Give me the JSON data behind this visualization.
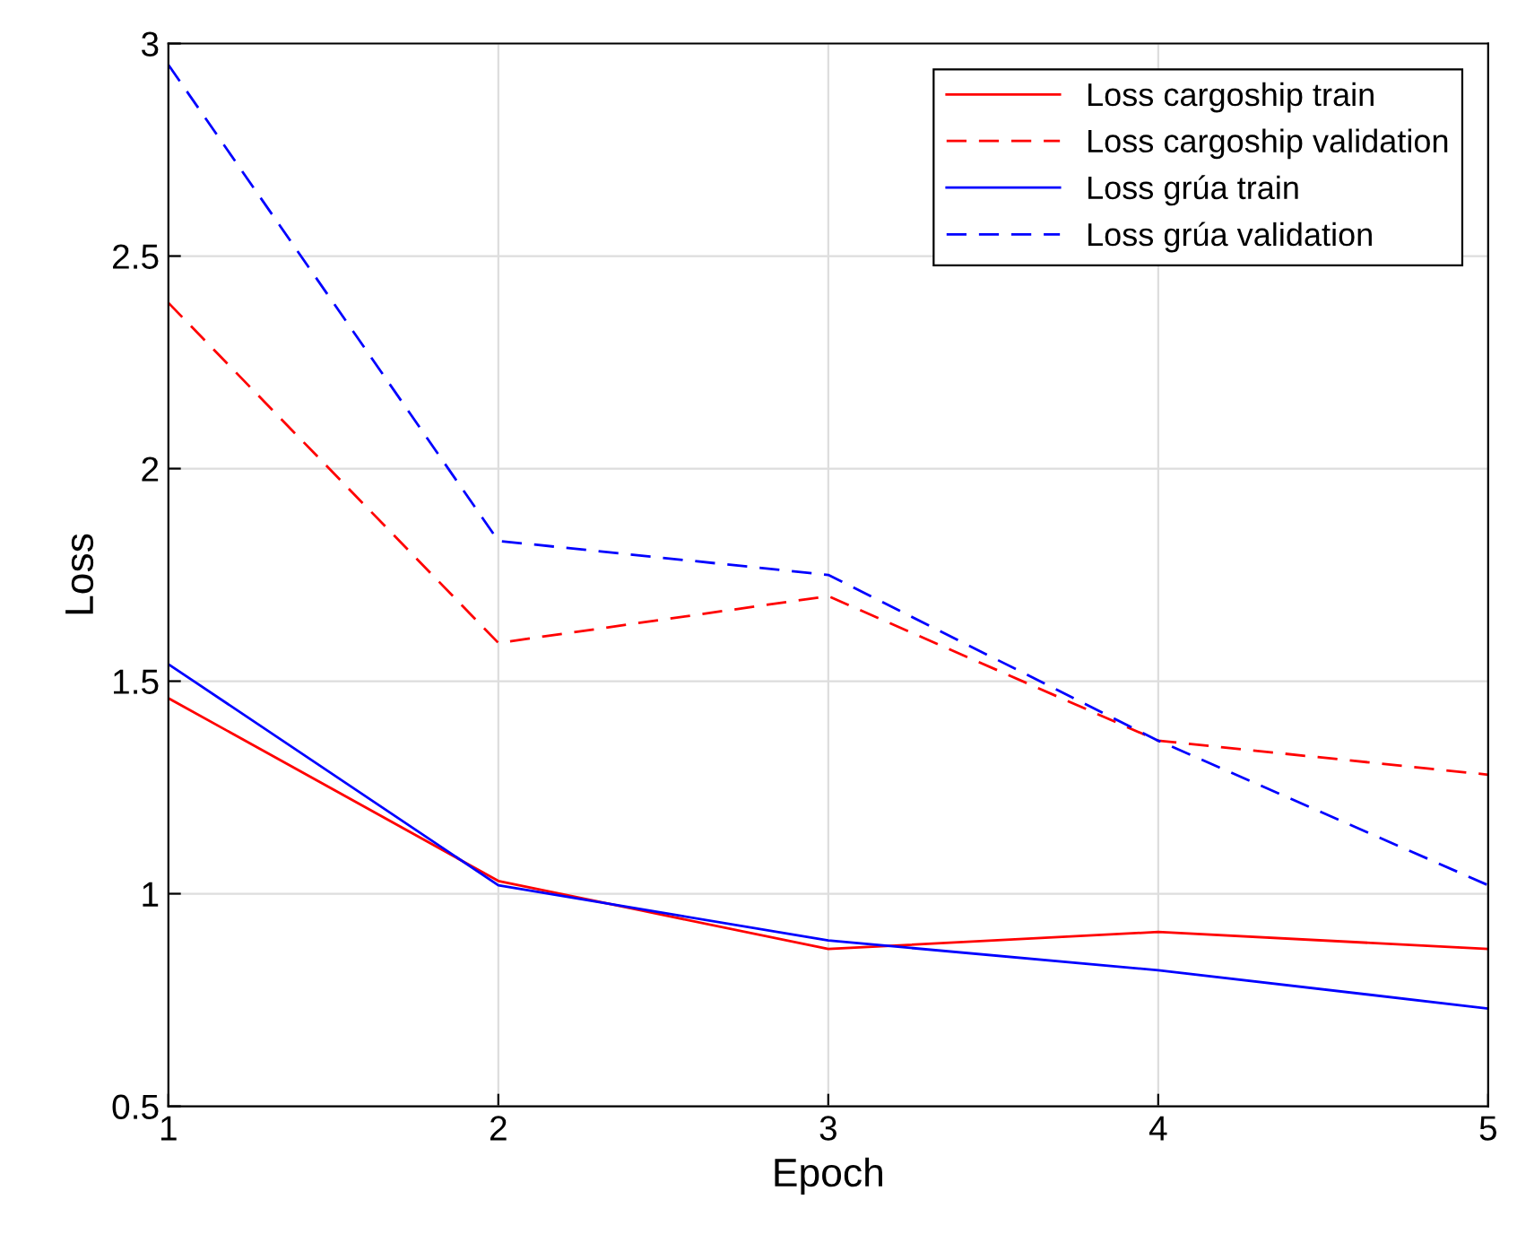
{
  "chart_data": {
    "type": "line",
    "xlabel": "Epoch",
    "ylabel": "Loss",
    "x": [
      1,
      2,
      3,
      4,
      5
    ],
    "series": [
      {
        "name": "Loss cargoship train",
        "color": "#ff0000",
        "line_style": "solid",
        "values": [
          1.46,
          1.03,
          0.87,
          0.91,
          0.87
        ]
      },
      {
        "name": "Loss cargoship validation",
        "color": "#ff0000",
        "line_style": "dashed",
        "values": [
          2.39,
          1.59,
          1.7,
          1.36,
          1.28
        ]
      },
      {
        "name": "Loss grúa train",
        "color": "#0000ff",
        "line_style": "solid",
        "values": [
          1.54,
          1.02,
          0.89,
          0.82,
          0.73
        ]
      },
      {
        "name": "Loss grúa validation",
        "color": "#0000ff",
        "line_style": "dashed",
        "values": [
          2.95,
          1.83,
          1.75,
          1.36,
          1.02
        ]
      }
    ],
    "xlim": [
      1,
      5
    ],
    "xticks": [
      1,
      2,
      3,
      4,
      5
    ],
    "ylim": [
      0.5,
      3
    ],
    "yticks": [
      0.5,
      1,
      1.5,
      2,
      2.5,
      3
    ],
    "grid": true,
    "legend": "top right",
    "marker": "none"
  }
}
